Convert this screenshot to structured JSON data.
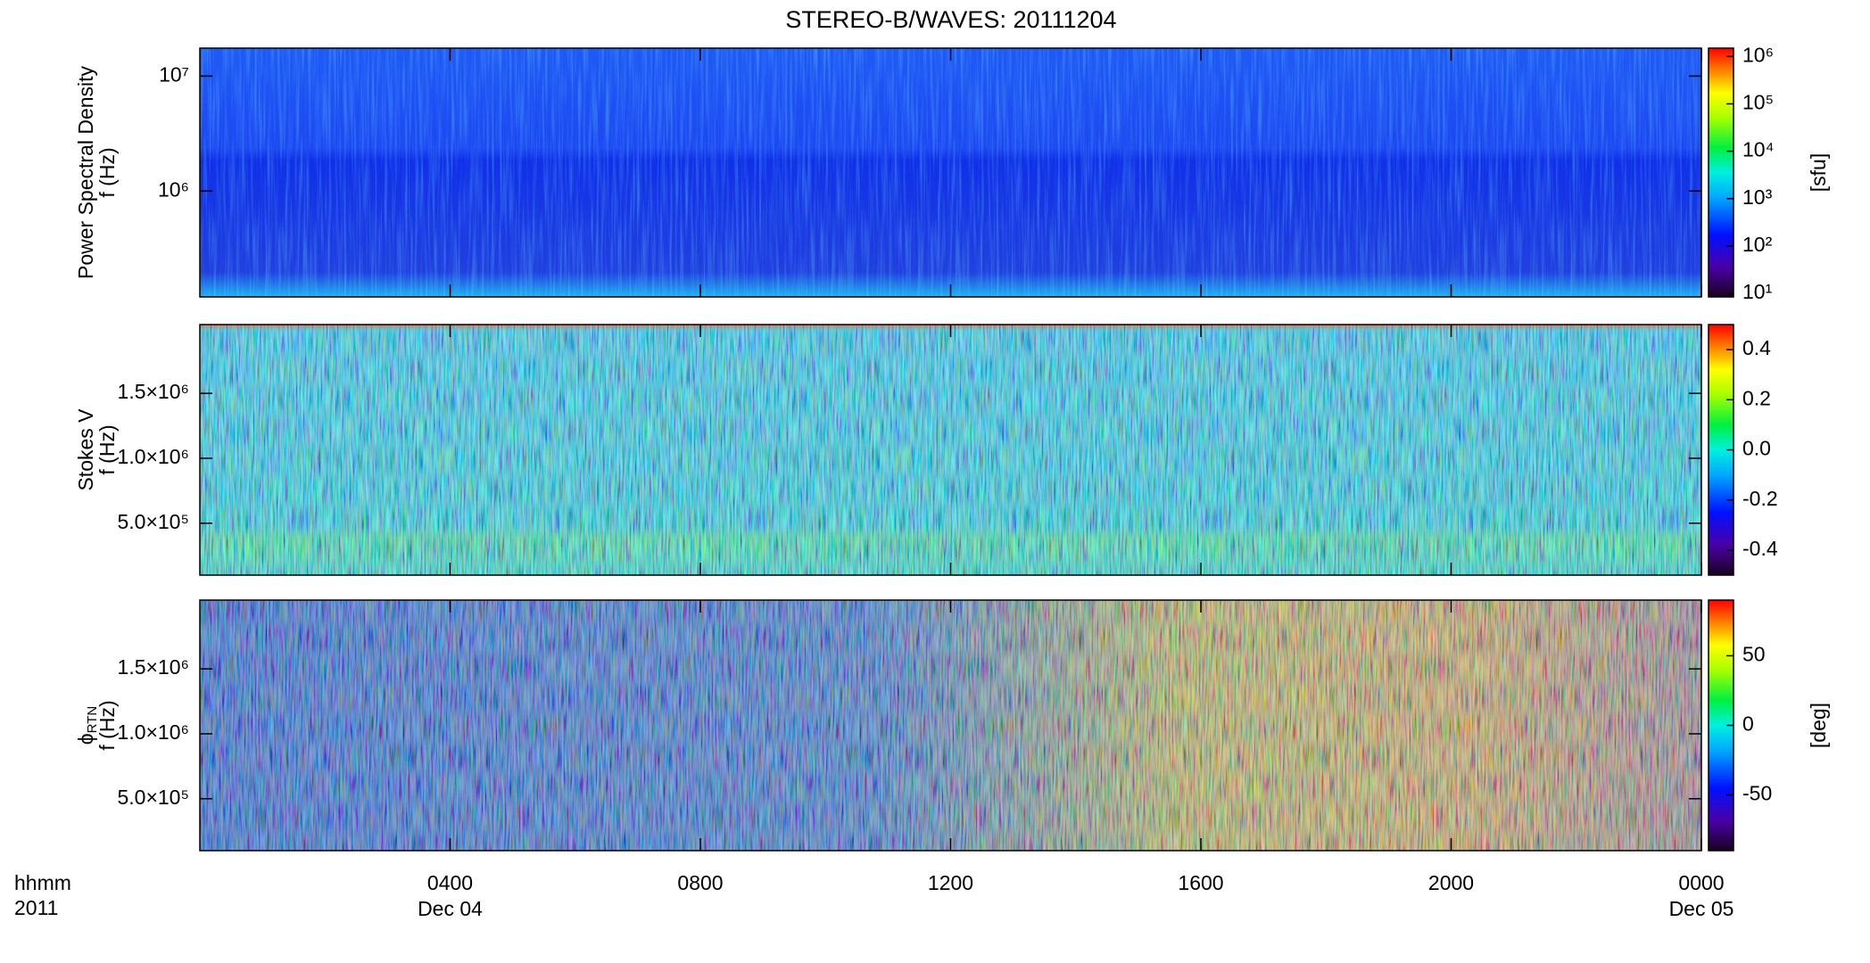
{
  "title": "STEREO-B/WAVES: 20111204",
  "chart_data": [
    {
      "type": "heatmap",
      "log_y": true,
      "ylabel": [
        "Power Spectral Density",
        "f (Hz)"
      ],
      "ylim": [
        120000,
        17500000
      ],
      "yticks": [
        {
          "value": 1000000,
          "label": "10⁶"
        },
        {
          "value": 10000000,
          "label": "10⁷"
        }
      ],
      "colorbar": {
        "log": true,
        "label": "[sfu]",
        "clim": [
          8.4,
          1500000
        ],
        "ticks": [
          {
            "value": 10,
            "label": "10¹"
          },
          {
            "value": 100,
            "label": "10²"
          },
          {
            "value": 1000,
            "label": "10³"
          },
          {
            "value": 10000,
            "label": "10⁴"
          },
          {
            "value": 100000,
            "label": "10⁵"
          },
          {
            "value": 1000000,
            "label": "10⁶"
          }
        ]
      }
    },
    {
      "type": "heatmap",
      "log_y": false,
      "ylabel": [
        "Stokes V",
        "f (Hz)"
      ],
      "ylim": [
        100000,
        2030000
      ],
      "yticks": [
        {
          "value": 500000,
          "label": "5.0×10⁵"
        },
        {
          "value": 1000000,
          "label": "1.0×10⁶"
        },
        {
          "value": 1500000,
          "label": "1.5×10⁶"
        }
      ],
      "colorbar": {
        "log": false,
        "label": "",
        "clim": [
          -0.5,
          0.5
        ],
        "ticks": [
          0.4,
          0.2,
          {
            "value": 0,
            "label": "0.0"
          },
          -0.2,
          -0.4
        ]
      }
    },
    {
      "type": "heatmap",
      "log_y": false,
      "ylabel_symbol": "ϕ",
      "ylabel_subscript": "RTN",
      "ylabel": [
        "f (Hz)"
      ],
      "ylim": [
        100000,
        2030000
      ],
      "yticks": [
        {
          "value": 500000,
          "label": "5.0×10⁵"
        },
        {
          "value": 1000000,
          "label": "1.0×10⁶"
        },
        {
          "value": 1500000,
          "label": "1.5×10⁶"
        }
      ],
      "colorbar": {
        "log": false,
        "label": "[deg]",
        "clim": [
          -90,
          90
        ],
        "ticks": [
          50,
          0,
          -50
        ]
      },
      "xlim": [
        0,
        24
      ],
      "xticks": [
        {
          "value": 4,
          "label": "0400"
        },
        {
          "value": 8,
          "label": "0800"
        },
        {
          "value": 12,
          "label": "1200"
        },
        {
          "value": 16,
          "label": "1600"
        },
        {
          "value": 20,
          "label": "2000"
        },
        {
          "value": 24,
          "label": "0000"
        }
      ],
      "x_date_labels": [
        {
          "value": 4,
          "label": "Dec 04"
        },
        {
          "value": 24,
          "label": "Dec 05"
        }
      ],
      "xlabel": [
        "hhmm",
        "2011"
      ]
    }
  ]
}
